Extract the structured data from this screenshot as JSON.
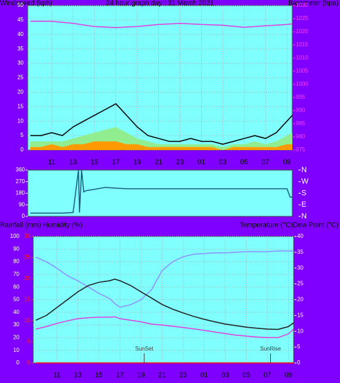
{
  "chart_data": [
    {
      "type": "line",
      "left_label": "Windspeed (kph)",
      "title": "24 hour graph day : 31 March 2021",
      "right_label": "Barometer (hpa)",
      "xlim": [
        8.75,
        33.5
      ],
      "xticks": [
        11,
        13,
        15,
        17,
        19,
        21,
        23,
        {
          "value": 25,
          "label": "01"
        },
        {
          "value": 27,
          "label": "03"
        },
        {
          "value": 29,
          "label": "05"
        },
        {
          "value": 31,
          "label": "07"
        },
        {
          "value": 33,
          "label": "09"
        }
      ],
      "ylim": [
        0,
        50
      ],
      "yticks": [
        0,
        5,
        10,
        15,
        20,
        25,
        30,
        35,
        40,
        45,
        50
      ],
      "y2lim": [
        975,
        1030
      ],
      "y2ticks": [
        975,
        980,
        985,
        990,
        995,
        1000,
        1005,
        1010,
        1015,
        1020,
        1025,
        1030
      ],
      "grid": true,
      "series": [
        {
          "color": "#90ee90",
          "area": true,
          "x": [
            9,
            10,
            11,
            12,
            13,
            14,
            15,
            16,
            17,
            18,
            19,
            20,
            21,
            22,
            23,
            24,
            25,
            26,
            27,
            28,
            29,
            30,
            31,
            32,
            33,
            33.5
          ],
          "values": [
            3,
            3,
            3,
            3,
            4,
            5,
            6,
            7,
            8,
            6,
            4,
            3,
            2,
            2,
            2,
            2,
            2,
            2,
            1,
            2,
            2,
            3,
            2,
            3,
            5,
            6
          ]
        },
        {
          "color": "#ff9900",
          "area": true,
          "x": [
            9,
            10,
            11,
            12,
            13,
            14,
            15,
            16,
            17,
            18,
            19,
            20,
            21,
            22,
            23,
            24,
            25,
            26,
            27,
            28,
            29,
            30,
            31,
            32,
            33,
            33.5
          ],
          "values": [
            1,
            1,
            2,
            1,
            2,
            2,
            3,
            3,
            3,
            2,
            2,
            1,
            1,
            1,
            1,
            1,
            1,
            1,
            0,
            1,
            1,
            1,
            1,
            1,
            2,
            2
          ]
        },
        {
          "color": "#000000",
          "x": [
            9,
            10,
            11,
            12,
            13,
            14,
            15,
            16,
            17,
            18,
            19,
            20,
            21,
            22,
            23,
            24,
            25,
            26,
            27,
            28,
            29,
            30,
            31,
            32,
            33,
            33.5
          ],
          "values": [
            5,
            5,
            6,
            5,
            8,
            10,
            12,
            14,
            16,
            12,
            8,
            5,
            4,
            3,
            3,
            4,
            3,
            3,
            2,
            3,
            4,
            5,
            4,
            6,
            10,
            12
          ]
        },
        {
          "color": "#e040e0",
          "axis": "y2",
          "x": [
            9,
            11,
            13,
            15,
            17,
            19,
            21,
            23,
            25,
            27,
            29,
            31,
            33,
            33.5
          ],
          "values": [
            1024,
            1024,
            1023.2,
            1022,
            1021.6,
            1022,
            1022.8,
            1023.2,
            1022.8,
            1022.5,
            1021.7,
            1022.3,
            1022.8,
            1023
          ]
        }
      ]
    },
    {
      "type": "line",
      "xlim": [
        8.75,
        33.5
      ],
      "ylim": [
        0,
        360
      ],
      "yticks": [
        0,
        90,
        180,
        270,
        360
      ],
      "y2lim": [
        0,
        360
      ],
      "y2ticks": [
        {
          "value": 0,
          "label": "N"
        },
        {
          "value": 90,
          "label": "E"
        },
        {
          "value": 180,
          "label": "S"
        },
        {
          "value": 270,
          "label": "W"
        },
        {
          "value": 360,
          "label": "N"
        }
      ],
      "series": [
        {
          "color": "#1f6080",
          "x": [
            9,
            10,
            11,
            12,
            13,
            13.5,
            13.6,
            13.8,
            14,
            14.2,
            15,
            16,
            17,
            18,
            19,
            21,
            25,
            29,
            33,
            33.3,
            33.5
          ],
          "values": [
            25,
            25,
            25,
            25,
            30,
            360,
            30,
            360,
            190,
            200,
            210,
            225,
            220,
            215,
            215,
            215,
            215,
            215,
            215,
            150,
            150
          ]
        }
      ]
    },
    {
      "type": "line",
      "left_label": "Rainfall (mm)  Humidity (%)",
      "right_label": "Temperature (°C)Dew Point (°C)",
      "xlim": [
        8.75,
        33.5
      ],
      "xticks": [
        11,
        13,
        15,
        17,
        19,
        21,
        23,
        {
          "value": 25,
          "label": "01"
        },
        {
          "value": 27,
          "label": "03"
        },
        {
          "value": 29,
          "label": "05"
        },
        {
          "value": 31,
          "label": "07"
        },
        {
          "value": 33,
          "label": "09"
        }
      ],
      "ylim": [
        0,
        100
      ],
      "yticks": [
        0,
        10,
        20,
        30,
        40,
        50,
        60,
        70,
        80,
        90,
        100
      ],
      "y2lim": [
        0,
        40
      ],
      "y2ticks": [
        0,
        5,
        10,
        15,
        20,
        25,
        30,
        35,
        40
      ],
      "y3lim": [
        0,
        30
      ],
      "y3ticks": [
        0,
        5,
        10,
        15,
        20,
        25,
        30
      ],
      "grid": true,
      "series": [
        {
          "color": "#9090ff",
          "x": [
            9,
            10,
            11,
            12,
            13,
            14,
            15,
            16,
            16.5,
            17,
            18,
            19,
            20,
            21,
            22,
            23,
            24,
            25,
            26,
            27,
            28,
            29,
            30,
            31,
            32,
            33,
            33.5
          ],
          "values": [
            83.6,
            80,
            75,
            69,
            65,
            60,
            55,
            51,
            47,
            44,
            46,
            50,
            58,
            73,
            80,
            84,
            86,
            86.5,
            87,
            87,
            87.5,
            88,
            88,
            88,
            88.5,
            88.5,
            88.5
          ]
        },
        {
          "color": "#e040e0",
          "axis": "y2",
          "x": [
            9,
            10,
            11,
            12,
            13,
            14,
            15,
            16,
            16.5,
            17,
            18,
            19,
            20,
            21,
            22,
            23,
            24,
            25,
            26,
            27,
            28,
            29,
            30,
            31,
            32,
            33,
            33.5
          ],
          "values": [
            10.7,
            11.5,
            12.5,
            13.3,
            14,
            14.3,
            14.5,
            14.5,
            14.6,
            14,
            13.5,
            13,
            12.3,
            12,
            11.6,
            11.2,
            10.8,
            10.3,
            9.8,
            9.3,
            8.8,
            8.5,
            8.2,
            8,
            8,
            9.2,
            10.7
          ]
        },
        {
          "color": "#202020",
          "axis": "y2",
          "x": [
            9,
            10,
            11,
            12,
            13,
            14,
            15,
            16,
            16.5,
            17,
            18,
            19,
            20,
            21,
            22,
            23,
            24,
            25,
            26,
            27,
            28,
            29,
            30,
            31,
            32,
            33,
            33.5
          ],
          "values": [
            13.5,
            15,
            17.5,
            20,
            22.5,
            24.5,
            25.5,
            26,
            26.5,
            26,
            24.5,
            22.5,
            20.5,
            18.5,
            17,
            15.8,
            14.7,
            13.8,
            13,
            12.3,
            11.8,
            11.3,
            11,
            10.7,
            10.6,
            11.5,
            12.7
          ]
        },
        {
          "color": "#ff0000",
          "axis": "y3",
          "x": [
            9,
            33.5
          ],
          "values": [
            0,
            0
          ]
        }
      ],
      "annotations": [
        {
          "text": "SunSet",
          "x": 19.3
        },
        {
          "text": "SunRise",
          "x": 31.3
        }
      ]
    }
  ]
}
